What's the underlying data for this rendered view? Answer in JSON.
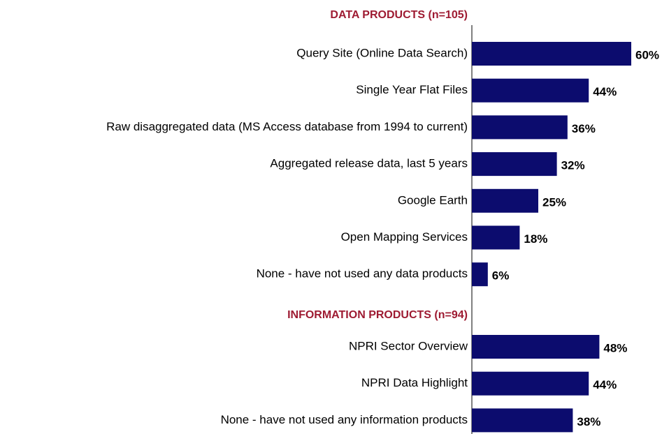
{
  "chart_data": {
    "type": "bar",
    "orientation": "horizontal",
    "color": "#0c0c6e",
    "header_color": "#9e1b32",
    "groups": [
      {
        "title": "DATA PRODUCTS (n=105)",
        "categories": [
          "Query Site (Online Data Search)",
          "Single Year Flat Files",
          "Raw disaggregated data (MS Access database from 1994 to current)",
          "Aggregated release data, last 5 years",
          "Google Earth",
          "Open Mapping Services",
          "None - have not used any data products"
        ],
        "values": [
          60,
          44,
          36,
          32,
          25,
          18,
          6
        ],
        "value_labels": [
          "60%",
          "44%",
          "36%",
          "32%",
          "25%",
          "18%",
          "6%"
        ]
      },
      {
        "title": "INFORMATION PRODUCTS (n=94)",
        "categories": [
          "NPRI Sector Overview",
          "NPRI Data Highlight",
          "None - have not used any information products"
        ],
        "values": [
          48,
          44,
          38
        ],
        "value_labels": [
          "48%",
          "44%",
          "38%"
        ]
      }
    ]
  }
}
